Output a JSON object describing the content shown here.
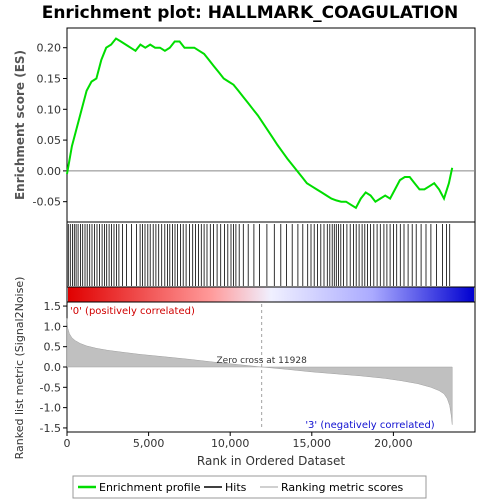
{
  "chart_data": {
    "type": "line",
    "title": "Enrichment plot: HALLMARK_COAGULATION",
    "top_panel": {
      "ylabel": "Enrichment score (ES)",
      "ylim": [
        -0.083,
        0.232
      ],
      "yticks": [
        -0.05,
        0.0,
        0.05,
        0.1,
        0.15,
        0.2
      ],
      "ytick_labels": [
        "-0.05",
        "0.00",
        "0.05",
        "0.10",
        "0.15",
        "0.20"
      ],
      "series_name": "Enrichment profile",
      "color": "#00dd00",
      "es_profile": {
        "x": [
          0,
          300,
          600,
          900,
          1200,
          1500,
          1800,
          2100,
          2400,
          2700,
          3000,
          3300,
          3600,
          3900,
          4200,
          4500,
          4800,
          5100,
          5400,
          5700,
          6000,
          6300,
          6600,
          6900,
          7200,
          7500,
          7800,
          8100,
          8400,
          8700,
          9000,
          9300,
          9600,
          9900,
          10200,
          10500,
          10800,
          11100,
          11400,
          11700,
          12000,
          12300,
          12600,
          12900,
          13200,
          13500,
          13800,
          14100,
          14400,
          14700,
          15000,
          15300,
          15600,
          15900,
          16200,
          16500,
          16800,
          17100,
          17400,
          17700,
          18000,
          18300,
          18600,
          18900,
          19200,
          19500,
          19800,
          20100,
          20400,
          20700,
          21000,
          21300,
          21600,
          21900,
          22200,
          22500,
          22800,
          23100,
          23400,
          23600
        ],
        "y": [
          -0.005,
          0.04,
          0.07,
          0.1,
          0.13,
          0.145,
          0.15,
          0.18,
          0.2,
          0.205,
          0.215,
          0.21,
          0.205,
          0.2,
          0.195,
          0.205,
          0.2,
          0.205,
          0.2,
          0.2,
          0.195,
          0.2,
          0.21,
          0.21,
          0.2,
          0.2,
          0.2,
          0.195,
          0.19,
          0.18,
          0.17,
          0.16,
          0.15,
          0.145,
          0.14,
          0.13,
          0.12,
          0.11,
          0.1,
          0.09,
          0.078,
          0.066,
          0.054,
          0.042,
          0.031,
          0.02,
          0.01,
          0.0,
          -0.01,
          -0.02,
          -0.025,
          -0.03,
          -0.035,
          -0.04,
          -0.045,
          -0.048,
          -0.05,
          -0.05,
          -0.055,
          -0.06,
          -0.045,
          -0.035,
          -0.04,
          -0.05,
          -0.045,
          -0.04,
          -0.045,
          -0.03,
          -0.015,
          -0.01,
          -0.01,
          -0.02,
          -0.03,
          -0.03,
          -0.025,
          -0.02,
          -0.03,
          -0.045,
          -0.02,
          0.005
        ]
      }
    },
    "hits_panel": {
      "series_name": "Hits",
      "hit_ranks": [
        80,
        200,
        330,
        450,
        560,
        680,
        820,
        960,
        1100,
        1240,
        1390,
        1530,
        1690,
        1840,
        2000,
        2150,
        2290,
        2430,
        2580,
        2730,
        2880,
        3030,
        3180,
        3400,
        3650,
        3950,
        4250,
        4480,
        4620,
        4780,
        4950,
        5100,
        5280,
        5450,
        5620,
        5800,
        5990,
        6150,
        6300,
        6460,
        6620,
        6780,
        6950,
        7120,
        7300,
        7500,
        7700,
        7880,
        8050,
        8230,
        8400,
        8580,
        8780,
        8980,
        9200,
        9420,
        9650,
        9850,
        10050,
        10200,
        10350,
        10550,
        10800,
        11100,
        11450,
        11800,
        12250,
        12700,
        13100,
        13450,
        13800,
        14150,
        14450,
        14750,
        14950,
        15150,
        15350,
        15550,
        15750,
        15950,
        16100,
        16250,
        16380,
        16500,
        16630,
        16780,
        16950,
        17150,
        17350,
        17550,
        17720,
        17900,
        18080,
        18250,
        18420,
        18600,
        18800,
        19000,
        19200,
        19420,
        19600,
        19800,
        20000,
        20200,
        20420,
        20650,
        20900,
        21150,
        21400,
        21700,
        22000,
        22300,
        22650,
        23000,
        23250,
        23450
      ]
    },
    "rank_colorbar": {
      "gradient": [
        "#e00000",
        "#ff9999",
        "#f0f0ff",
        "#aaaaff",
        "#0000d0"
      ],
      "label_positive": "'0' (positively correlated)",
      "label_negative": "'3' (negatively correlated)"
    },
    "bottom_panel": {
      "ylabel": "Ranked list metric (Signal2Noise)",
      "ylim": [
        -1.6,
        1.6
      ],
      "yticks": [
        -1.5,
        -1.0,
        -0.5,
        0.0,
        0.5,
        1.0,
        1.5
      ],
      "ytick_labels": [
        "-1.5",
        "-1.0",
        "-0.5",
        "0.0",
        "0.5",
        "1.0",
        "1.5"
      ],
      "series_name": "Ranking metric scores",
      "fill_color": "#c0c0c0",
      "zero_cross_label": "Zero cross at 11928",
      "zero_cross": 11928,
      "metric": {
        "x": [
          0,
          50,
          150,
          300,
          500,
          800,
          1200,
          1800,
          2500,
          3500,
          4500,
          6000,
          7500,
          9000,
          10500,
          11928,
          13500,
          15000,
          16500,
          18000,
          19500,
          20500,
          21500,
          22300,
          22800,
          23100,
          23300,
          23450,
          23550,
          23600
        ],
        "y": [
          1.2,
          0.95,
          0.82,
          0.72,
          0.65,
          0.58,
          0.52,
          0.46,
          0.41,
          0.36,
          0.31,
          0.25,
          0.19,
          0.12,
          0.06,
          0.0,
          -0.06,
          -0.12,
          -0.17,
          -0.22,
          -0.28,
          -0.34,
          -0.41,
          -0.5,
          -0.58,
          -0.66,
          -0.78,
          -0.95,
          -1.2,
          -1.42
        ]
      }
    },
    "xaxis": {
      "xlabel": "Rank in Ordered Dataset",
      "xlim": [
        0,
        25000
      ],
      "xticks": [
        0,
        5000,
        10000,
        15000,
        20000
      ],
      "xtick_labels": [
        "0",
        "5,000",
        "10,000",
        "15,000",
        "20,000"
      ]
    },
    "legend": {
      "placement": "bottom",
      "entries": [
        {
          "label": "Enrichment profile",
          "color": "#00dd00"
        },
        {
          "label": "Hits",
          "color": "#000000"
        },
        {
          "label": "Ranking metric scores",
          "color": "#c0c0c0"
        }
      ]
    }
  }
}
